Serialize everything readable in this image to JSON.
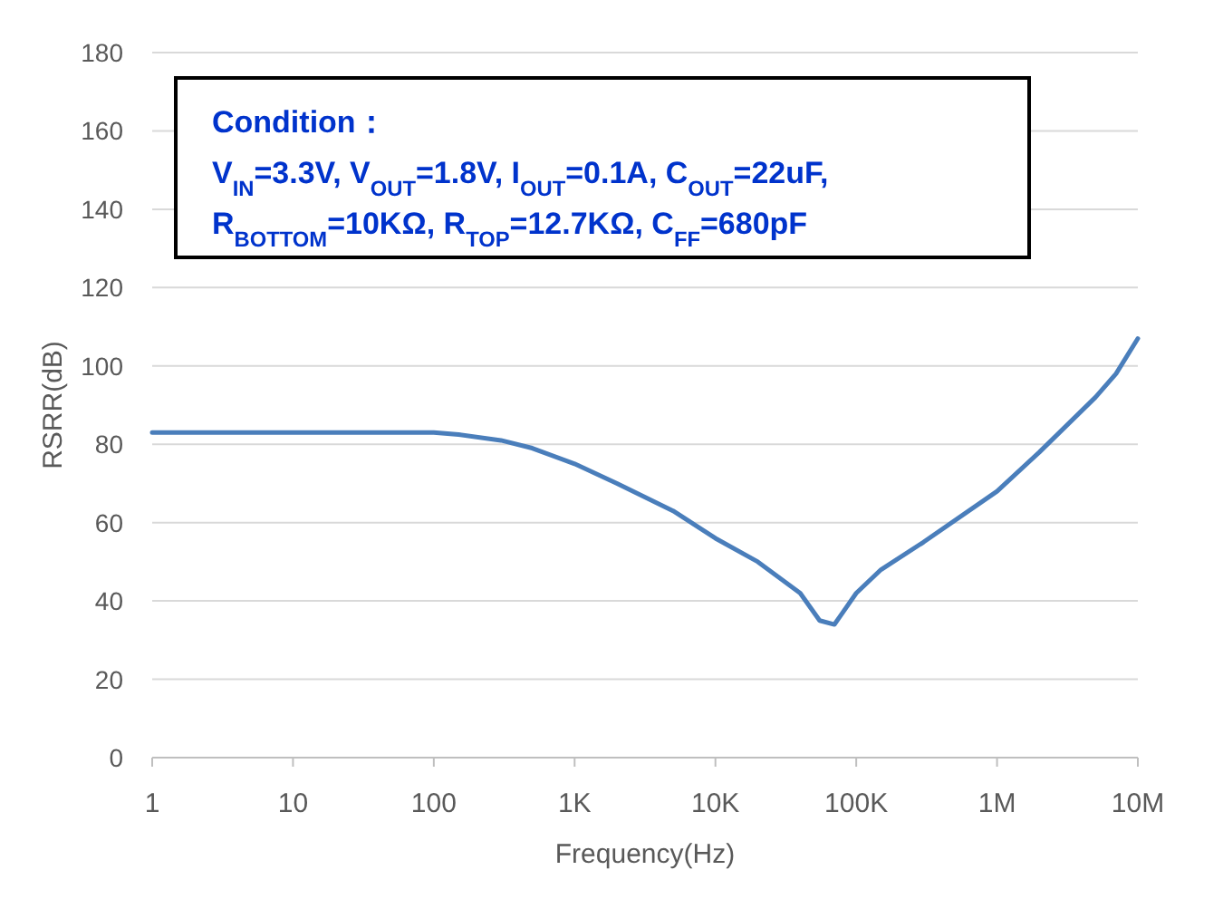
{
  "chart_data": {
    "type": "line",
    "xlabel": "Frequency(Hz)",
    "ylabel": "RSRR(dB)",
    "annotations": [
      "Condition：",
      "V$_{IN}$=3.3V, V$_{OUT}$=1.8V, I$_{OUT}$=0.1A, C$_{OUT}$=22uF,",
      "R$_{BOTTOM}$=10KΩ, R$_{TOP}$=12.7KΩ, C$_{FF}$=680pF"
    ],
    "x": [
      1,
      10,
      100,
      150,
      300,
      500,
      1000,
      2000,
      5000,
      10000,
      20000,
      40000,
      55000,
      70000,
      80000,
      100000,
      150000,
      300000,
      1000000,
      2000000,
      5000000,
      7000000,
      10000000
    ],
    "series": [
      {
        "color": "#4a7ebb",
        "values": [
          83,
          83,
          83,
          82.5,
          81,
          79,
          75,
          70,
          63,
          56,
          50,
          42,
          35,
          34,
          37,
          42,
          48,
          55,
          68,
          78,
          92,
          98,
          107
        ]
      }
    ],
    "log": "x",
    "xlim": [
      1,
      10000000
    ],
    "ylim": [
      0,
      180
    ],
    "xticks": [
      1,
      10,
      100,
      {
        "value": 1000,
        "label": "1K"
      },
      {
        "value": 10000,
        "label": "10K"
      },
      {
        "value": 100000,
        "label": "100K"
      },
      {
        "value": 1000000,
        "label": "1M"
      },
      {
        "value": 10000000,
        "label": "10M"
      }
    ],
    "yticks": [
      0,
      20,
      40,
      60,
      80,
      100,
      120,
      140,
      160,
      180
    ],
    "grid": "y"
  }
}
